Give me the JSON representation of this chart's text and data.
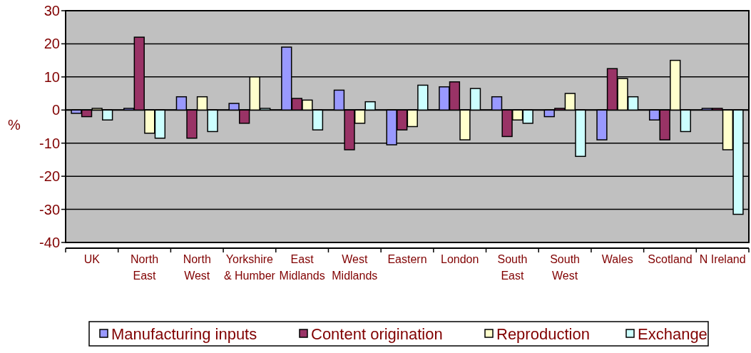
{
  "chart_data": {
    "type": "bar",
    "ylabel": "%",
    "categories": [
      "UK",
      "North East",
      "North West",
      "Yorkshire & Humber",
      "East Midlands",
      "West Midlands",
      "Eastern",
      "London",
      "South East",
      "South West",
      "Wales",
      "Scotland",
      "N Ireland"
    ],
    "series": [
      {
        "name": "Manufacturing inputs",
        "color": "#9999ff",
        "values": [
          -1,
          0.5,
          4,
          2,
          19,
          6,
          -10.5,
          7,
          4,
          -2,
          -9,
          -3,
          0.5
        ]
      },
      {
        "name": "Content origination",
        "color": "#993366",
        "values": [
          -2,
          22,
          -8.5,
          -4,
          3.5,
          -12,
          -6,
          8.5,
          -8,
          0.5,
          12.5,
          -9,
          0.5
        ]
      },
      {
        "name": "Reproduction",
        "color": "#ffffcc",
        "values": [
          0.5,
          -7,
          4,
          10,
          3,
          -4,
          -5,
          -9,
          -3,
          5,
          9.5,
          15,
          -12
        ]
      },
      {
        "name": "Exchange",
        "color": "#ccffff",
        "values": [
          -3,
          -8.5,
          -6.5,
          0.5,
          -6,
          2.5,
          7.5,
          6.5,
          -4,
          -14,
          4,
          -6.5,
          -31.5
        ]
      }
    ],
    "ylim": [
      -40,
      30
    ],
    "yticks": [
      -40,
      -30,
      -20,
      -10,
      0,
      10,
      20,
      30
    ],
    "grid": "y",
    "legend": "bottom"
  }
}
